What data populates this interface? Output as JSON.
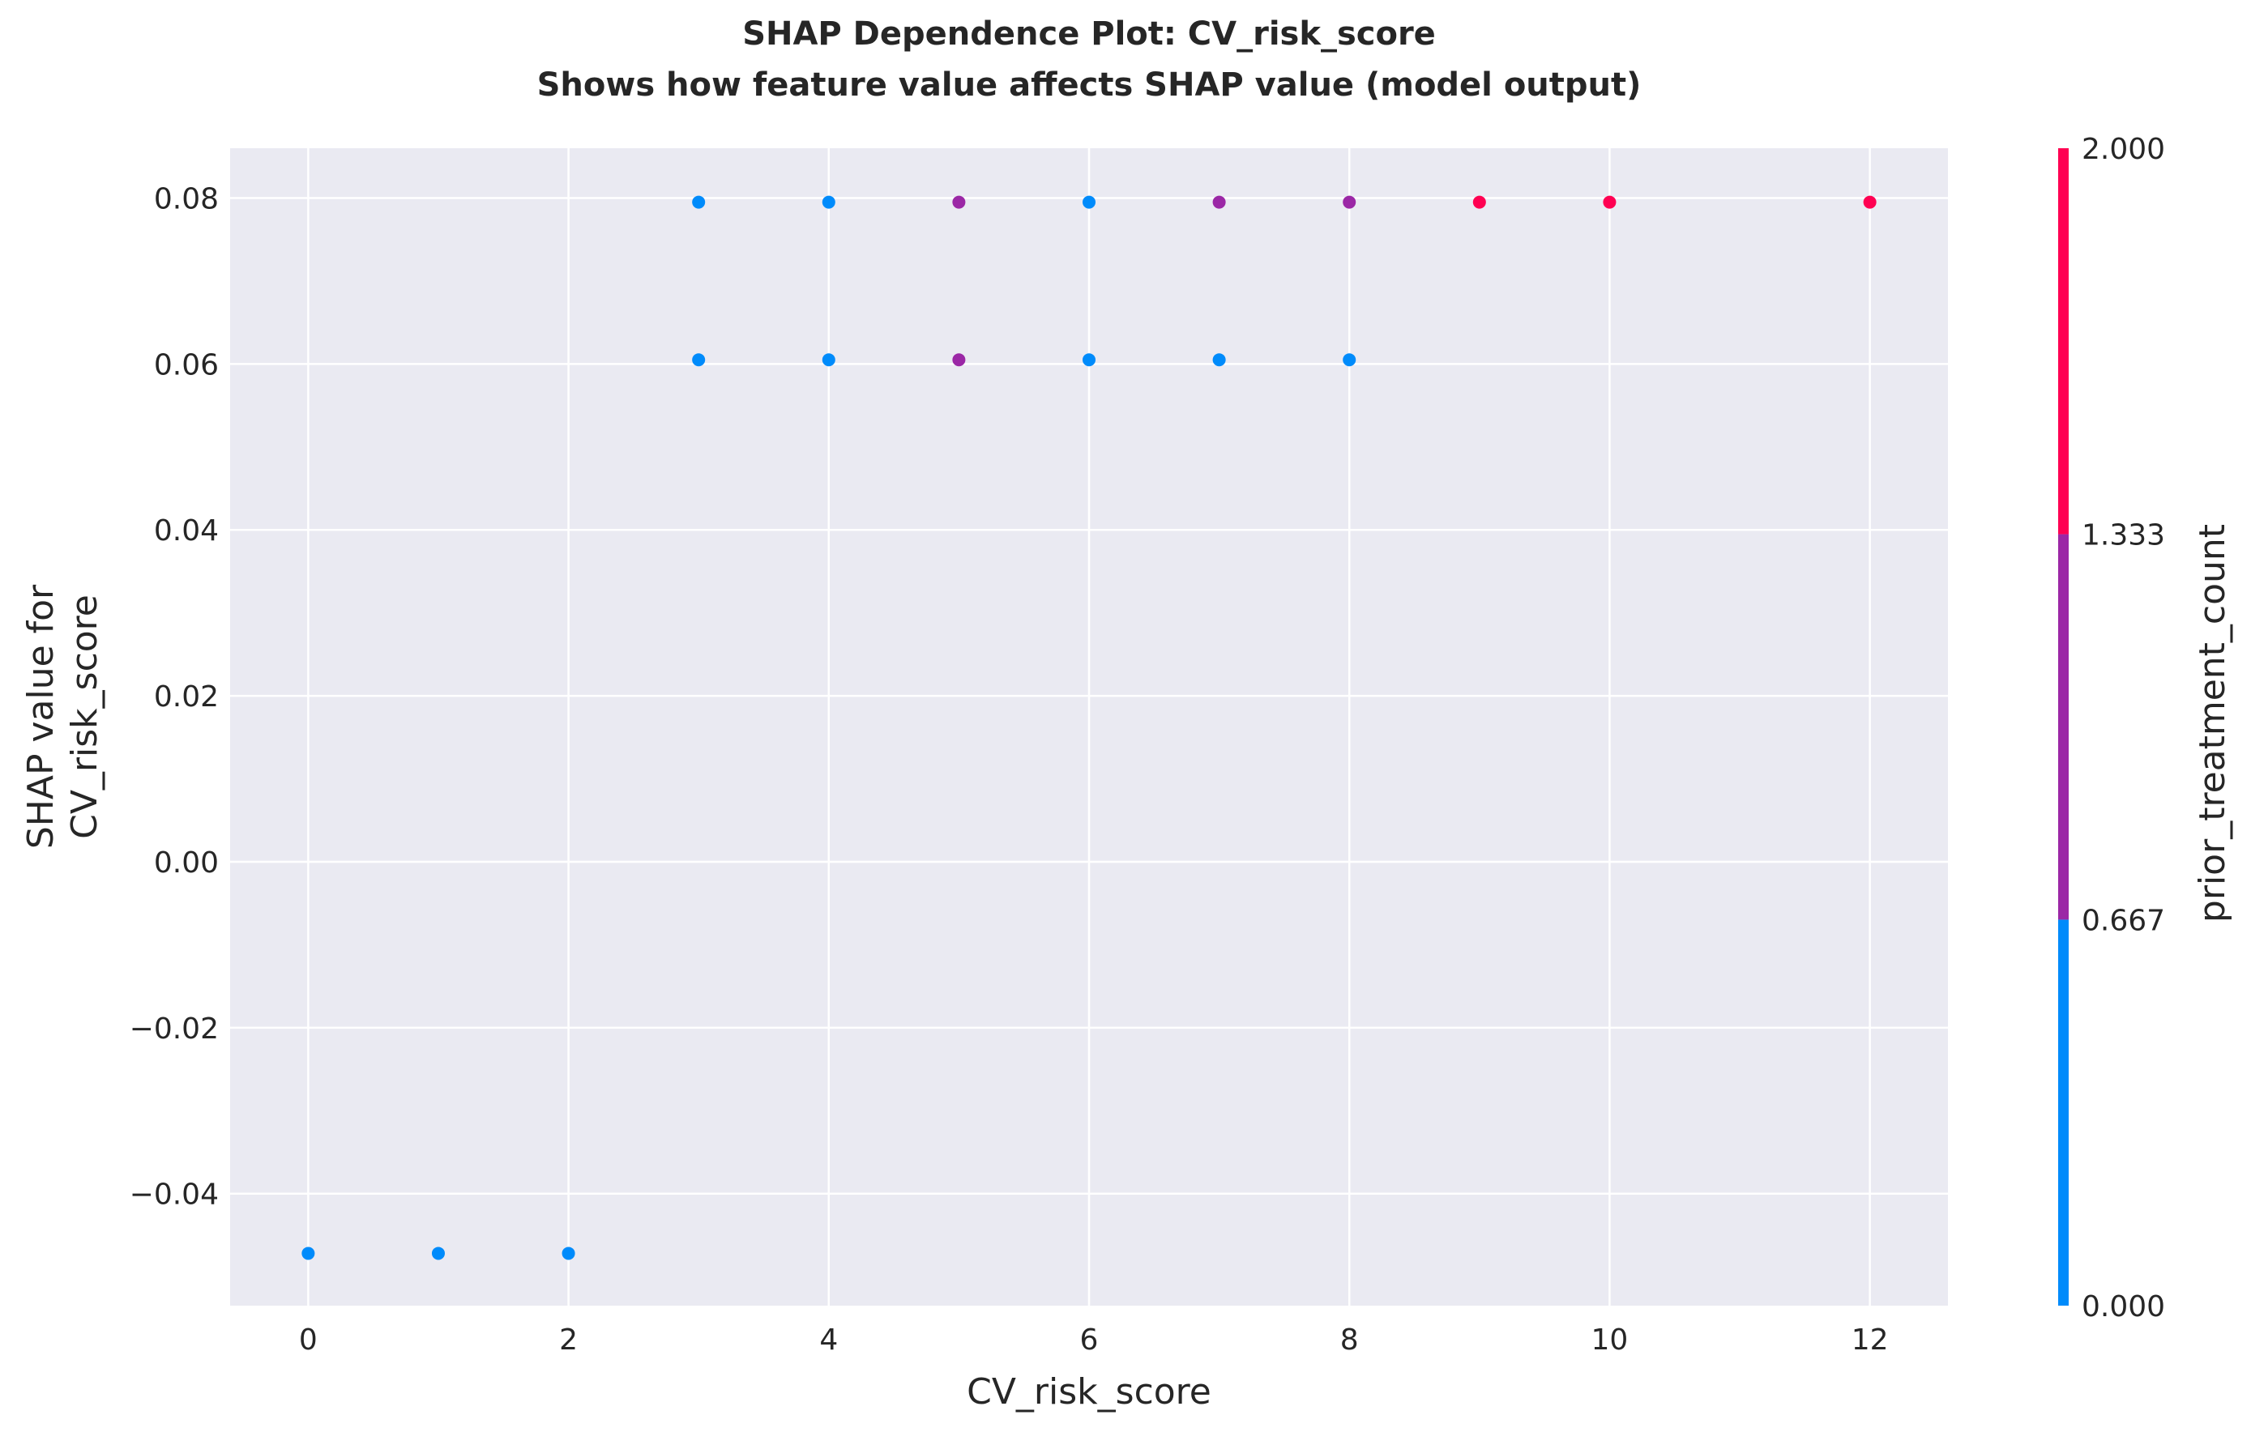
{
  "chart_data": {
    "type": "scatter",
    "title": "SHAP Dependence Plot: CV_risk_score",
    "subtitle": "Shows how feature value affects SHAP value (model output)",
    "xlabel": "CV_risk_score",
    "ylabel_line1": "SHAP value for",
    "ylabel_line2": "CV_risk_score",
    "xlim": [
      -0.6,
      12.6
    ],
    "ylim": [
      -0.0535,
      0.086
    ],
    "x_ticks": [
      0,
      2,
      4,
      6,
      8,
      10,
      12
    ],
    "x_tick_labels": [
      "0",
      "2",
      "4",
      "6",
      "8",
      "10",
      "12"
    ],
    "y_ticks": [
      -0.04,
      -0.02,
      0.0,
      0.02,
      0.04,
      0.06,
      0.08
    ],
    "y_tick_labels": [
      "−0.04",
      "−0.02",
      "0.00",
      "0.02",
      "0.04",
      "0.06",
      "0.08"
    ],
    "grid": true,
    "colorbar": {
      "label": "prior_treatment_count",
      "range": [
        0,
        2
      ],
      "ticks": [
        0,
        0.667,
        1.333,
        2
      ],
      "tick_labels": [
        "0.000",
        "0.667",
        "1.333",
        "2.000"
      ],
      "bands": [
        {
          "from": 0,
          "to": 0.667,
          "color": "#008bfb"
        },
        {
          "from": 0.667,
          "to": 1.333,
          "color": "#9b27a6"
        },
        {
          "from": 1.333,
          "to": 2,
          "color": "#ff0052"
        }
      ]
    },
    "points": [
      {
        "x": 0,
        "y": -0.0472,
        "c": 0
      },
      {
        "x": 1,
        "y": -0.0472,
        "c": 0
      },
      {
        "x": 2,
        "y": -0.0472,
        "c": 0
      },
      {
        "x": 3,
        "y": 0.0605,
        "c": 0
      },
      {
        "x": 3,
        "y": 0.0795,
        "c": 0
      },
      {
        "x": 4,
        "y": 0.0605,
        "c": 0
      },
      {
        "x": 4,
        "y": 0.0795,
        "c": 0
      },
      {
        "x": 5,
        "y": 0.0605,
        "c": 1
      },
      {
        "x": 5,
        "y": 0.0795,
        "c": 1
      },
      {
        "x": 6,
        "y": 0.0605,
        "c": 0
      },
      {
        "x": 6,
        "y": 0.0795,
        "c": 0
      },
      {
        "x": 7,
        "y": 0.0605,
        "c": 0
      },
      {
        "x": 7,
        "y": 0.0795,
        "c": 1
      },
      {
        "x": 8,
        "y": 0.0605,
        "c": 0
      },
      {
        "x": 8,
        "y": 0.0795,
        "c": 1
      },
      {
        "x": 9,
        "y": 0.0795,
        "c": 2
      },
      {
        "x": 10,
        "y": 0.0795,
        "c": 2
      },
      {
        "x": 12,
        "y": 0.0795,
        "c": 2
      }
    ]
  }
}
